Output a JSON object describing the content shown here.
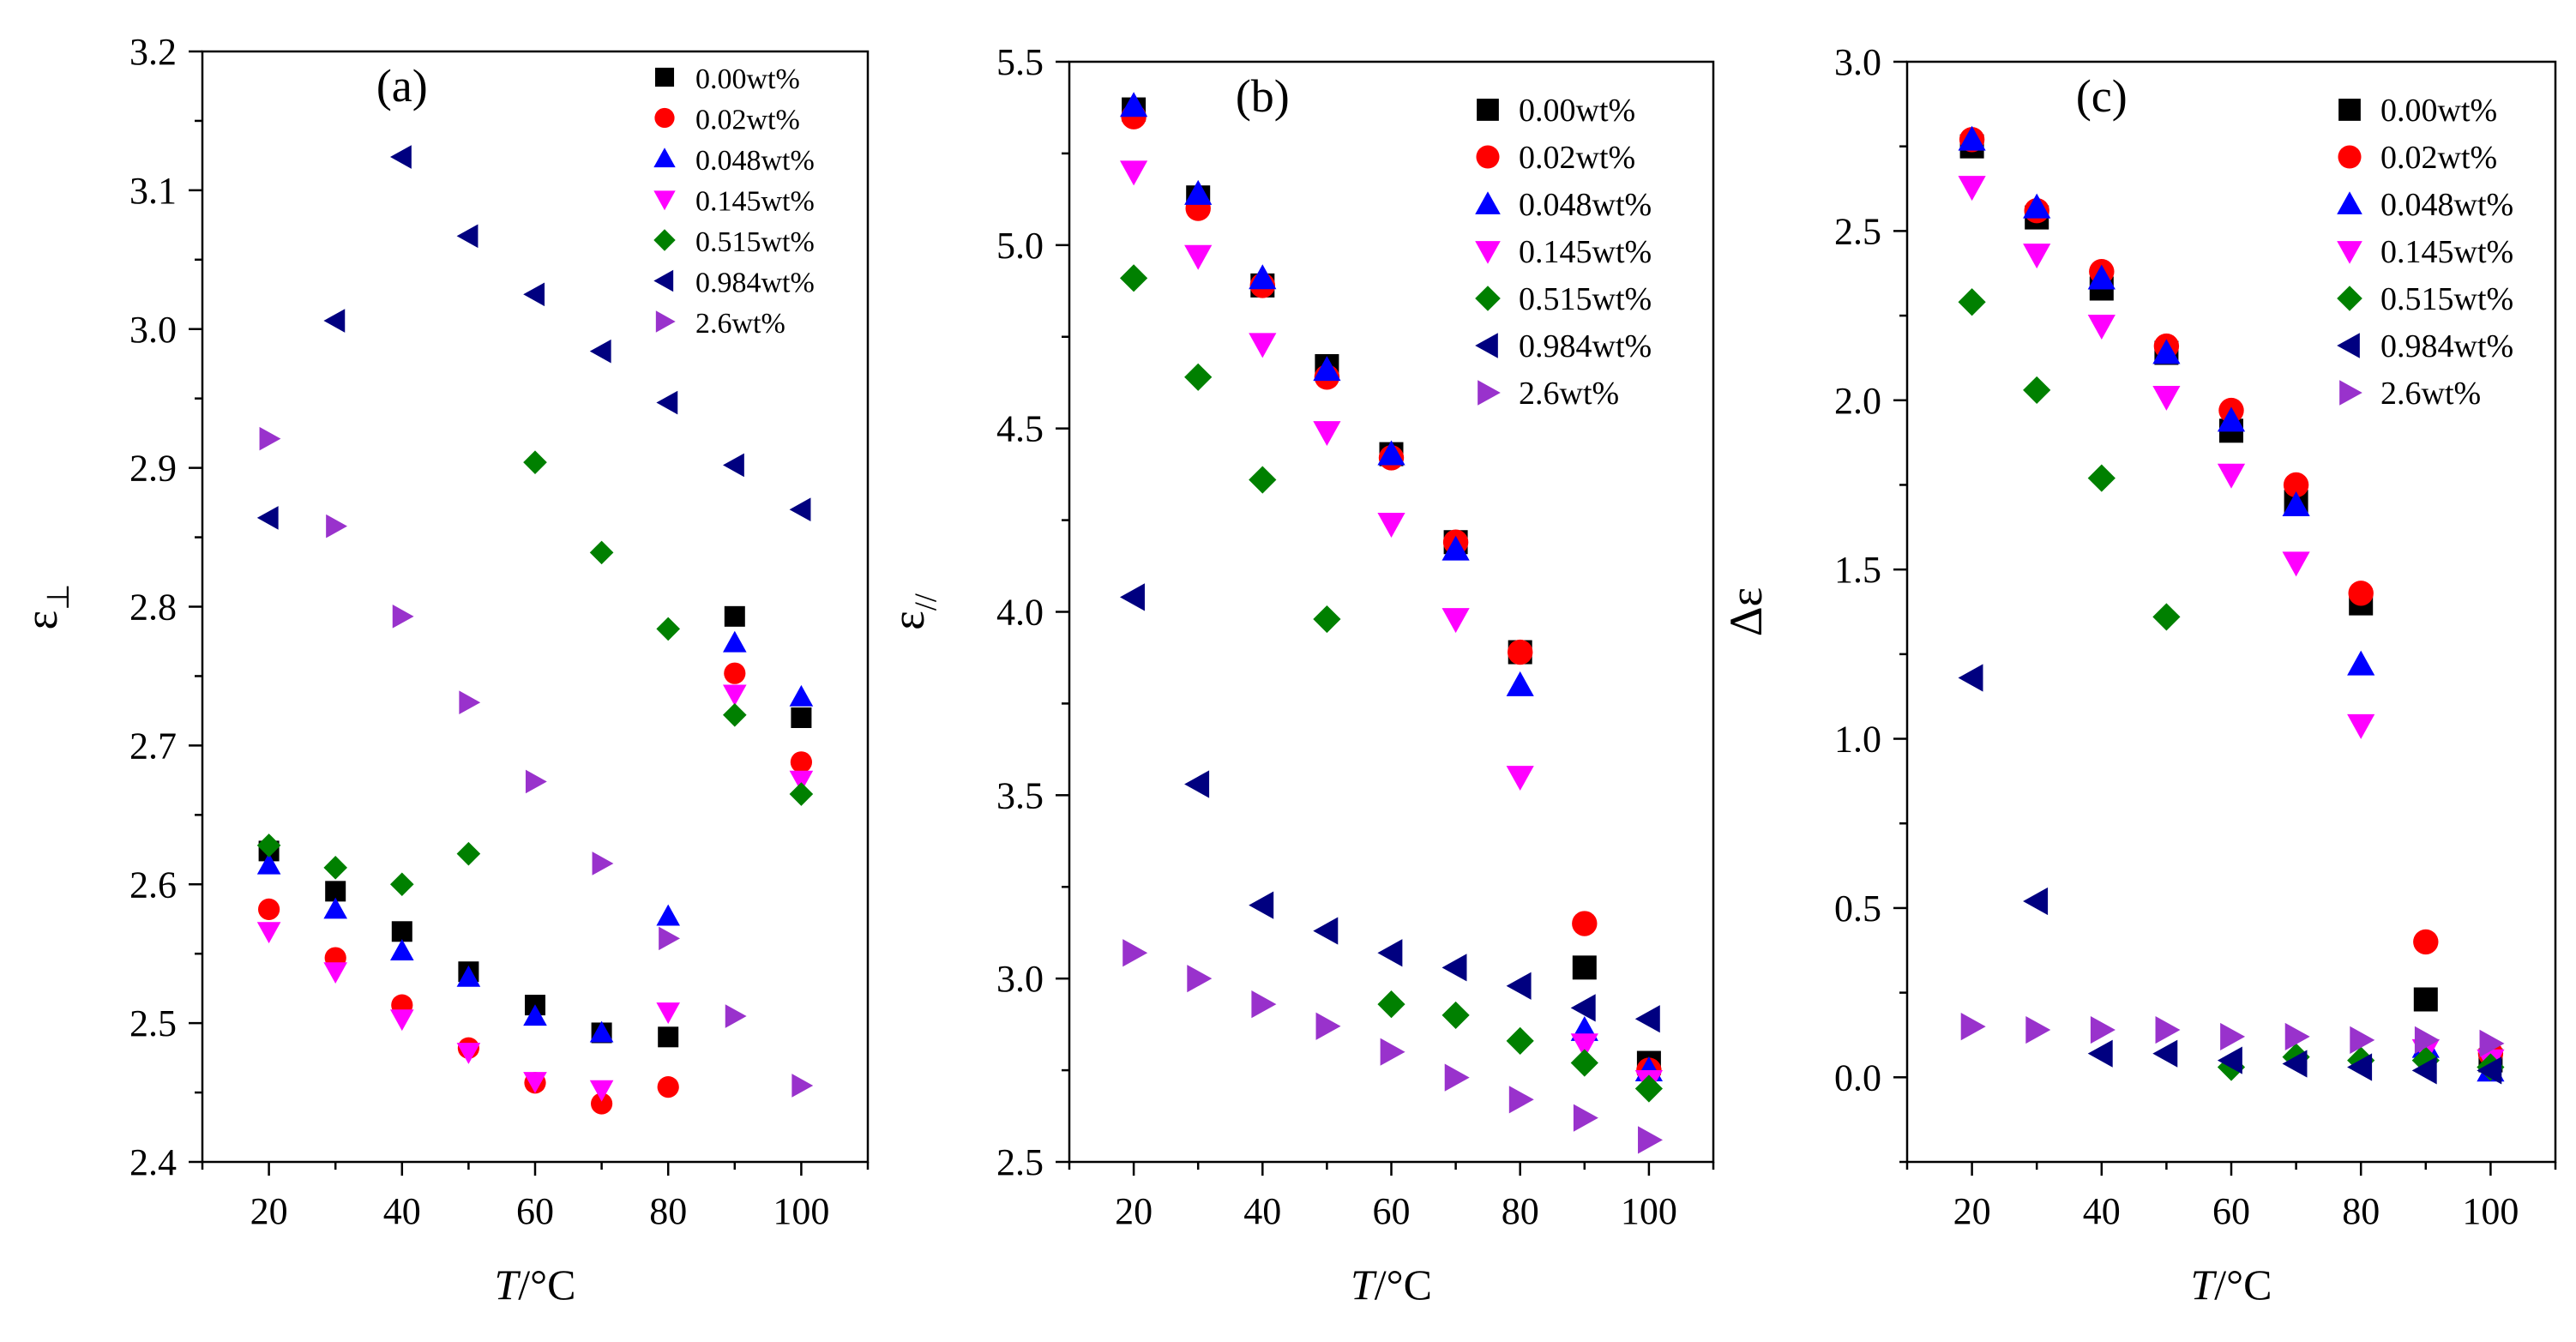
{
  "colors": {
    "0.00wt%": "#000000",
    "0.02wt%": "#ff0000",
    "0.048wt%": "#0000ff",
    "0.145wt%": "#ff00ff",
    "0.515wt%": "#008000",
    "0.984wt%": "#000080",
    "2.6wt%": "#9932cc"
  },
  "chart_data": [
    {
      "type": "scatter",
      "panel_label": "(a)",
      "ylabel": "ε",
      "ylabel_sub": "⊥",
      "xlabel_italic": "T",
      "xlabel_rest": "/°C",
      "xlim": [
        10,
        110
      ],
      "ylim": [
        2.4,
        3.2
      ],
      "xticks": [
        20,
        40,
        60,
        80,
        100
      ],
      "yticks": [
        "2.4",
        "2.5",
        "2.6",
        "2.7",
        "2.8",
        "2.9",
        "3.0",
        "3.1",
        "3.2"
      ],
      "legend_position": "top-right",
      "series": [
        {
          "name": "0.00wt%",
          "marker": "square",
          "x": [
            20,
            30,
            40,
            50,
            60,
            70,
            80,
            90,
            100
          ],
          "y": [
            2.624,
            2.595,
            2.566,
            2.537,
            2.513,
            2.493,
            2.49,
            2.793,
            2.72
          ]
        },
        {
          "name": "0.02wt%",
          "marker": "circle",
          "x": [
            20,
            30,
            40,
            50,
            60,
            70,
            80,
            90,
            100
          ],
          "y": [
            2.582,
            2.547,
            2.513,
            2.482,
            2.457,
            2.442,
            2.454,
            2.752,
            2.688
          ]
        },
        {
          "name": "0.048wt%",
          "marker": "triangle-up",
          "x": [
            20,
            30,
            40,
            50,
            60,
            70,
            80,
            90,
            100
          ],
          "y": [
            2.614,
            2.582,
            2.552,
            2.533,
            2.505,
            2.493,
            2.577,
            2.774,
            2.735
          ]
        },
        {
          "name": "0.145wt%",
          "marker": "triangle-down",
          "x": [
            20,
            30,
            40,
            50,
            60,
            70,
            80,
            90,
            100
          ],
          "y": [
            2.566,
            2.537,
            2.503,
            2.479,
            2.458,
            2.452,
            2.508,
            2.737,
            2.675
          ]
        },
        {
          "name": "0.515wt%",
          "marker": "diamond",
          "x": [
            20,
            30,
            40,
            50,
            60,
            70,
            80,
            90,
            100
          ],
          "y": [
            2.628,
            2.612,
            2.6,
            2.622,
            2.904,
            2.839,
            2.784,
            2.722,
            2.665
          ]
        },
        {
          "name": "0.984wt%",
          "marker": "triangle-left",
          "x": [
            20,
            30,
            40,
            50,
            60,
            70,
            80,
            90,
            100
          ],
          "y": [
            2.864,
            3.006,
            3.124,
            3.067,
            3.025,
            2.984,
            2.947,
            2.902,
            2.87
          ]
        },
        {
          "name": "2.6wt%",
          "marker": "triangle-right",
          "x": [
            20,
            30,
            40,
            50,
            60,
            70,
            80,
            90,
            100
          ],
          "y": [
            2.921,
            2.858,
            2.793,
            2.731,
            2.674,
            2.615,
            2.561,
            2.505,
            2.455
          ]
        }
      ]
    },
    {
      "type": "scatter",
      "panel_label": "(b)",
      "ylabel": "ε",
      "ylabel_sub": "//",
      "xlabel_italic": "T",
      "xlabel_rest": "/°C",
      "xlim": [
        10,
        110
      ],
      "ylim": [
        2.5,
        5.5
      ],
      "xticks": [
        20,
        40,
        60,
        80,
        100
      ],
      "yticks": [
        "2.5",
        "3.0",
        "3.5",
        "4.0",
        "4.5",
        "5.0",
        "5.5"
      ],
      "legend_position": "top-right",
      "series": [
        {
          "name": "0.00wt%",
          "marker": "square",
          "x": [
            20,
            30,
            40,
            50,
            60,
            70,
            80,
            90,
            100
          ],
          "y": [
            5.37,
            5.13,
            4.89,
            4.67,
            4.43,
            4.19,
            3.89,
            3.03,
            2.77
          ]
        },
        {
          "name": "0.02wt%",
          "marker": "circle",
          "x": [
            20,
            30,
            40,
            50,
            60,
            70,
            80,
            90,
            100
          ],
          "y": [
            5.35,
            5.1,
            4.89,
            4.64,
            4.42,
            4.19,
            3.89,
            3.15,
            2.75
          ]
        },
        {
          "name": "0.048wt%",
          "marker": "triangle-up",
          "x": [
            20,
            30,
            40,
            50,
            60,
            70,
            80,
            90,
            100
          ],
          "y": [
            5.38,
            5.14,
            4.91,
            4.66,
            4.43,
            4.17,
            3.8,
            2.86,
            2.75
          ]
        },
        {
          "name": "0.145wt%",
          "marker": "triangle-down",
          "x": [
            20,
            30,
            40,
            50,
            60,
            70,
            80,
            90,
            100
          ],
          "y": [
            5.2,
            4.97,
            4.73,
            4.49,
            4.24,
            3.98,
            3.55,
            2.82,
            2.72
          ]
        },
        {
          "name": "0.515wt%",
          "marker": "diamond",
          "x": [
            20,
            30,
            40,
            50,
            60,
            70,
            80,
            90,
            100
          ],
          "y": [
            4.91,
            4.64,
            4.36,
            3.98,
            2.93,
            2.9,
            2.83,
            2.77,
            2.7
          ]
        },
        {
          "name": "0.984wt%",
          "marker": "triangle-left",
          "x": [
            20,
            30,
            40,
            50,
            60,
            70,
            80,
            90,
            100
          ],
          "y": [
            4.04,
            3.53,
            3.2,
            3.13,
            3.07,
            3.03,
            2.98,
            2.92,
            2.89
          ]
        },
        {
          "name": "2.6wt%",
          "marker": "triangle-right",
          "x": [
            20,
            30,
            40,
            50,
            60,
            70,
            80,
            90,
            100
          ],
          "y": [
            3.07,
            3.0,
            2.93,
            2.87,
            2.8,
            2.73,
            2.67,
            2.62,
            2.56
          ]
        }
      ]
    },
    {
      "type": "scatter",
      "panel_label": "(c)",
      "ylabel": "Δε",
      "ylabel_sub": "",
      "xlabel_italic": "T",
      "xlabel_rest": "/°C",
      "xlim": [
        10,
        110
      ],
      "ylim": [
        -0.25,
        3.0
      ],
      "xticks": [
        20,
        40,
        60,
        80,
        100
      ],
      "yticks": [
        "0.0",
        "0.5",
        "1.0",
        "1.5",
        "2.0",
        "2.5",
        "3.0"
      ],
      "legend_position": "top-right",
      "series": [
        {
          "name": "0.00wt%",
          "marker": "square",
          "x": [
            20,
            30,
            40,
            50,
            60,
            70,
            80,
            90,
            100
          ],
          "y": [
            2.75,
            2.54,
            2.33,
            2.14,
            1.91,
            1.7,
            1.4,
            0.23,
            0.05
          ]
        },
        {
          "name": "0.02wt%",
          "marker": "circle",
          "x": [
            20,
            30,
            40,
            50,
            60,
            70,
            80,
            90,
            100
          ],
          "y": [
            2.77,
            2.56,
            2.38,
            2.16,
            1.97,
            1.75,
            1.43,
            0.4,
            0.07
          ]
        },
        {
          "name": "0.048wt%",
          "marker": "triangle-up",
          "x": [
            20,
            30,
            40,
            50,
            60,
            70,
            80,
            90,
            100
          ],
          "y": [
            2.77,
            2.57,
            2.36,
            2.14,
            1.94,
            1.69,
            1.22,
            0.09,
            0.02
          ]
        },
        {
          "name": "0.145wt%",
          "marker": "triangle-down",
          "x": [
            20,
            30,
            40,
            50,
            60,
            70,
            80,
            90,
            100
          ],
          "y": [
            2.63,
            2.43,
            2.22,
            2.01,
            1.78,
            1.52,
            1.04,
            0.08,
            0.05
          ]
        },
        {
          "name": "0.515wt%",
          "marker": "diamond",
          "x": [
            20,
            30,
            40,
            50,
            60,
            70,
            80,
            90,
            100
          ],
          "y": [
            2.29,
            2.03,
            1.77,
            1.36,
            0.03,
            0.06,
            0.05,
            0.05,
            0.03
          ]
        },
        {
          "name": "0.984wt%",
          "marker": "triangle-left",
          "x": [
            20,
            30,
            40,
            50,
            60,
            70,
            80,
            90,
            100
          ],
          "y": [
            1.18,
            0.52,
            0.07,
            0.07,
            0.05,
            0.04,
            0.03,
            0.02,
            0.02
          ]
        },
        {
          "name": "2.6wt%",
          "marker": "triangle-right",
          "x": [
            20,
            30,
            40,
            50,
            60,
            70,
            80,
            90,
            100
          ],
          "y": [
            0.15,
            0.14,
            0.14,
            0.14,
            0.12,
            0.12,
            0.11,
            0.11,
            0.1
          ]
        }
      ]
    }
  ]
}
